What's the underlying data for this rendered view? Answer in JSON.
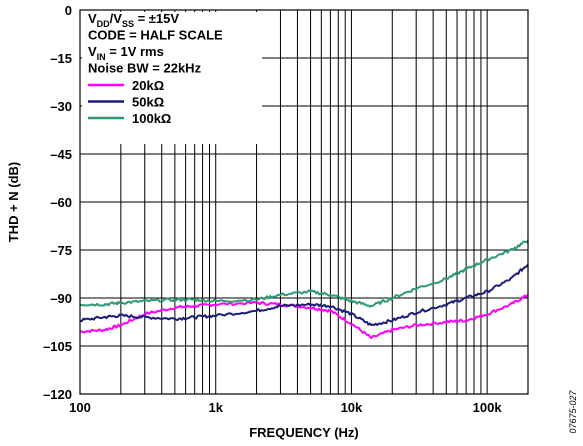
{
  "chart_data": {
    "type": "line",
    "title": "",
    "xlabel": "FREQUENCY (Hz)",
    "ylabel": "THD + N (dB)",
    "x_scale": "log",
    "xlim": [
      100,
      200000
    ],
    "ylim": [
      -120,
      0
    ],
    "x_ticks": [
      100,
      1000,
      10000,
      100000
    ],
    "x_tick_labels": [
      "100",
      "1k",
      "10k",
      "100k"
    ],
    "y_ticks": [
      0,
      -15,
      -30,
      -45,
      -60,
      -75,
      -90,
      -105,
      -120
    ],
    "y_tick_labels": [
      "0",
      "–15",
      "–30",
      "–45",
      "–60",
      "–75",
      "–90",
      "–105",
      "–120"
    ],
    "grid": true,
    "legend_position": "top-left",
    "annotations": [
      {
        "main": "V",
        "sub": "DD",
        "mid": "/V",
        "sub2": "SS",
        "rest": " = ±15V"
      },
      {
        "main": "CODE = HALF SCALE"
      },
      {
        "main": "V",
        "sub": "IN",
        "rest": " = 1V rms"
      },
      {
        "main": "Noise BW = 22kHz"
      }
    ],
    "series": [
      {
        "name": "20kΩ",
        "color": "#ff00ff",
        "x": [
          100,
          150,
          200,
          300,
          500,
          700,
          1000,
          2000,
          3000,
          5000,
          7000,
          10000,
          14000,
          20000,
          30000,
          50000,
          70000,
          100000,
          150000,
          200000
        ],
        "y": [
          -100.5,
          -100,
          -98.5,
          -95,
          -93,
          -92.5,
          -92,
          -91.5,
          -92,
          -93,
          -94,
          -98,
          -102.5,
          -100,
          -98.5,
          -97.5,
          -97,
          -95,
          -92,
          -89
        ]
      },
      {
        "name": "50kΩ",
        "color": "#1c1c7a",
        "x": [
          100,
          150,
          200,
          300,
          500,
          700,
          1000,
          2000,
          3000,
          5000,
          7000,
          10000,
          14000,
          20000,
          30000,
          50000,
          70000,
          100000,
          150000,
          200000
        ],
        "y": [
          -97,
          -96,
          -95.5,
          -96,
          -96.5,
          -96,
          -95.5,
          -94,
          -92.5,
          -92,
          -92.5,
          -95,
          -98.5,
          -97,
          -94.5,
          -92,
          -90,
          -88,
          -84,
          -79.5
        ]
      },
      {
        "name": "100kΩ",
        "color": "#2e9b6f",
        "x": [
          100,
          150,
          200,
          300,
          500,
          700,
          1000,
          2000,
          3000,
          5000,
          7000,
          10000,
          14000,
          20000,
          30000,
          50000,
          70000,
          100000,
          150000,
          200000
        ],
        "y": [
          -92,
          -92,
          -91.5,
          -91,
          -90.5,
          -90.5,
          -91,
          -90.5,
          -89,
          -88,
          -89,
          -91,
          -92.5,
          -90,
          -87,
          -84,
          -81,
          -78,
          -75,
          -72
        ]
      }
    ]
  },
  "figure_id": "07675-027"
}
